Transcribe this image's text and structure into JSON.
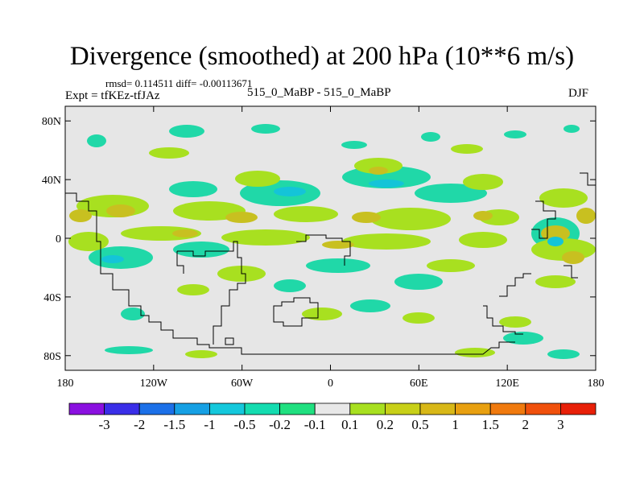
{
  "title": "Divergence (smoothed) at 200 hPa (10**6 m/s)",
  "stats": "rmsd= 0.114511 diff= -0.00113671",
  "experiment": "Expt = tfKEz-tfJAz",
  "runs": "515_0_MaBP - 515_0_MaBP",
  "season": "DJF",
  "map": {
    "lon_range": [
      -180,
      180
    ],
    "lat_range": [
      -90,
      90
    ],
    "lat_ticks": [
      {
        "v": 80,
        "label": "80N"
      },
      {
        "v": 40,
        "label": "40N"
      },
      {
        "v": 0,
        "label": "0"
      },
      {
        "v": -40,
        "label": "40S"
      },
      {
        "v": -80,
        "label": "80S"
      }
    ],
    "lon_ticks": [
      {
        "v": -180,
        "label": "180"
      },
      {
        "v": -120,
        "label": "120W"
      },
      {
        "v": -60,
        "label": "60W"
      },
      {
        "v": 0,
        "label": "0"
      },
      {
        "v": 60,
        "label": "60E"
      },
      {
        "v": 120,
        "label": "120E"
      },
      {
        "v": 180,
        "label": "180"
      }
    ],
    "background_color": "#e6e6e6",
    "coastline_color": "#000000"
  },
  "colorbar": {
    "colors": [
      "#8a10e0",
      "#3a2ee8",
      "#1c70e8",
      "#16a0e4",
      "#14c8dc",
      "#14dcb0",
      "#20e080",
      "#e8e8e8",
      "#a8e020",
      "#c8d018",
      "#d8b818",
      "#e8a010",
      "#f07a0e",
      "#f0500c",
      "#e82008"
    ],
    "labels": [
      "-3",
      "-2",
      "-1.5",
      "-1",
      "-0.5",
      "-0.2",
      "-0.1",
      "0.1",
      "0.2",
      "0.5",
      "1",
      "1.5",
      "2",
      "3"
    ]
  }
}
